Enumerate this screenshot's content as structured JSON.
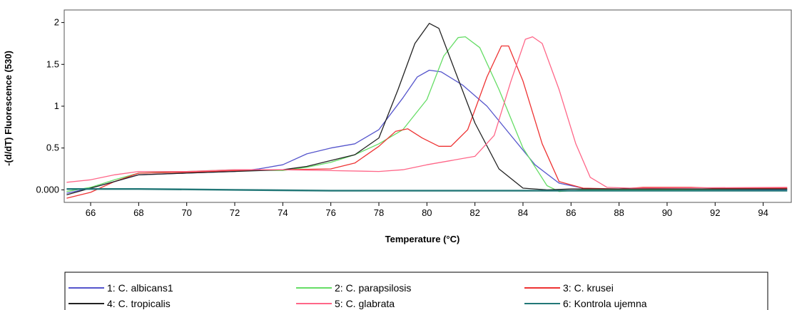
{
  "chart_data": {
    "type": "line",
    "title": "",
    "xlabel": "Temperature (°C)",
    "ylabel": "-(d/dT) Fluorescence (530)",
    "xlim": [
      64.9,
      95.2
    ],
    "ylim": [
      -0.15,
      2.15
    ],
    "x_ticks": [
      66,
      68,
      70,
      72,
      74,
      76,
      78,
      80,
      82,
      84,
      86,
      88,
      90,
      92,
      94
    ],
    "x_tick_labels": [
      "66",
      "68",
      "70",
      "72",
      "74",
      "76",
      "78",
      "80",
      "82",
      "84",
      "86",
      "88",
      "90",
      "92",
      "94"
    ],
    "y_ticks": [
      0,
      0.5,
      1,
      1.5,
      2
    ],
    "y_tick_labels": [
      "0.000",
      "0.5",
      "1",
      "1.5",
      "2"
    ],
    "grid": false,
    "legend_position": "bottom",
    "series": [
      {
        "name": "1: C. albicans1",
        "color": "#5555cc",
        "points": [
          [
            65,
            -0.04
          ],
          [
            66,
            0.02
          ],
          [
            67,
            0.1
          ],
          [
            68,
            0.18
          ],
          [
            70,
            0.2
          ],
          [
            72,
            0.22
          ],
          [
            73,
            0.25
          ],
          [
            74,
            0.3
          ],
          [
            75,
            0.43
          ],
          [
            76,
            0.5
          ],
          [
            77,
            0.55
          ],
          [
            78,
            0.72
          ],
          [
            79,
            1.1
          ],
          [
            79.6,
            1.35
          ],
          [
            80.1,
            1.43
          ],
          [
            80.6,
            1.41
          ],
          [
            81.5,
            1.25
          ],
          [
            82.5,
            1.0
          ],
          [
            83.5,
            0.65
          ],
          [
            84.5,
            0.3
          ],
          [
            85.5,
            0.08
          ],
          [
            86.5,
            0.02
          ],
          [
            88,
            0.0
          ],
          [
            95,
            0.0
          ]
        ]
      },
      {
        "name": "2: C. parapsilosis",
        "color": "#66dd66",
        "points": [
          [
            65,
            -0.02
          ],
          [
            66,
            0.03
          ],
          [
            67,
            0.12
          ],
          [
            68,
            0.2
          ],
          [
            70,
            0.22
          ],
          [
            72,
            0.24
          ],
          [
            74,
            0.23
          ],
          [
            75,
            0.27
          ],
          [
            76,
            0.33
          ],
          [
            77,
            0.42
          ],
          [
            78,
            0.55
          ],
          [
            79,
            0.72
          ],
          [
            80,
            1.08
          ],
          [
            80.7,
            1.6
          ],
          [
            81.3,
            1.82
          ],
          [
            81.6,
            1.83
          ],
          [
            82.2,
            1.7
          ],
          [
            83,
            1.2
          ],
          [
            84,
            0.5
          ],
          [
            85,
            0.05
          ],
          [
            85.5,
            -0.02
          ],
          [
            86.5,
            0.0
          ],
          [
            95,
            0.01
          ]
        ]
      },
      {
        "name": "3: C. krusei",
        "color": "#ee3333",
        "points": [
          [
            65,
            -0.1
          ],
          [
            66,
            -0.03
          ],
          [
            67,
            0.1
          ],
          [
            68,
            0.2
          ],
          [
            70,
            0.21
          ],
          [
            72,
            0.23
          ],
          [
            74,
            0.24
          ],
          [
            76,
            0.25
          ],
          [
            77,
            0.32
          ],
          [
            78,
            0.52
          ],
          [
            78.7,
            0.7
          ],
          [
            79.2,
            0.73
          ],
          [
            79.8,
            0.62
          ],
          [
            80.5,
            0.52
          ],
          [
            81,
            0.52
          ],
          [
            81.7,
            0.72
          ],
          [
            82.5,
            1.35
          ],
          [
            83.1,
            1.72
          ],
          [
            83.4,
            1.72
          ],
          [
            84,
            1.3
          ],
          [
            84.8,
            0.55
          ],
          [
            85.5,
            0.1
          ],
          [
            86.5,
            0.02
          ],
          [
            88,
            0.01
          ],
          [
            89,
            0.03
          ],
          [
            91,
            0.03
          ],
          [
            92,
            0.02
          ],
          [
            95,
            0.02
          ]
        ]
      },
      {
        "name": "4: C. tropicalis",
        "color": "#222222",
        "points": [
          [
            65,
            -0.06
          ],
          [
            66,
            0.02
          ],
          [
            67,
            0.1
          ],
          [
            68,
            0.18
          ],
          [
            70,
            0.2
          ],
          [
            72,
            0.22
          ],
          [
            74,
            0.24
          ],
          [
            75,
            0.28
          ],
          [
            76,
            0.35
          ],
          [
            77,
            0.42
          ],
          [
            78,
            0.62
          ],
          [
            78.8,
            1.2
          ],
          [
            79.5,
            1.75
          ],
          [
            80.1,
            1.99
          ],
          [
            80.5,
            1.93
          ],
          [
            81,
            1.55
          ],
          [
            82,
            0.8
          ],
          [
            83,
            0.25
          ],
          [
            84,
            0.02
          ],
          [
            85,
            0.0
          ],
          [
            86,
            0.01
          ],
          [
            95,
            0.01
          ]
        ]
      },
      {
        "name": "5: C. glabrata",
        "color": "#ff6688",
        "points": [
          [
            65,
            0.09
          ],
          [
            66,
            0.12
          ],
          [
            67,
            0.18
          ],
          [
            68,
            0.22
          ],
          [
            70,
            0.22
          ],
          [
            72,
            0.24
          ],
          [
            74,
            0.24
          ],
          [
            76,
            0.23
          ],
          [
            78,
            0.22
          ],
          [
            79,
            0.24
          ],
          [
            80,
            0.3
          ],
          [
            81,
            0.35
          ],
          [
            82,
            0.4
          ],
          [
            82.8,
            0.65
          ],
          [
            83.5,
            1.3
          ],
          [
            84.1,
            1.8
          ],
          [
            84.4,
            1.83
          ],
          [
            84.8,
            1.75
          ],
          [
            85.5,
            1.2
          ],
          [
            86.2,
            0.55
          ],
          [
            86.8,
            0.15
          ],
          [
            87.5,
            0.03
          ],
          [
            88.5,
            0.02
          ],
          [
            95,
            0.03
          ]
        ]
      },
      {
        "name": "6: Kontrola ujemna",
        "color": "#227777",
        "points": [
          [
            65,
            0.01
          ],
          [
            68,
            0.01
          ],
          [
            72,
            0.0
          ],
          [
            76,
            -0.01
          ],
          [
            80,
            -0.01
          ],
          [
            84,
            -0.01
          ],
          [
            88,
            -0.01
          ],
          [
            92,
            -0.01
          ],
          [
            95,
            -0.01
          ]
        ]
      }
    ]
  }
}
